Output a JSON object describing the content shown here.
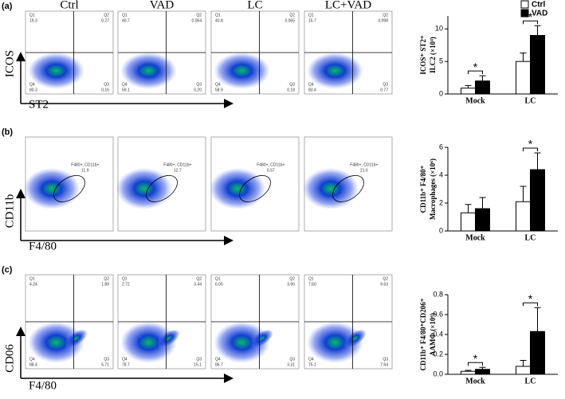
{
  "panels": [
    {
      "label": "(a)",
      "headers": [
        "Ctrl",
        "VAD",
        "LC",
        "LC+VAD"
      ],
      "y_axis": "ICOS",
      "x_axis": "ST2",
      "plots": [
        {
          "quadrants": [
            [
              "Q1",
              "19.3"
            ],
            [
              "Q2",
              "0.27"
            ],
            [
              "Q4",
              "80.3"
            ],
            [
              "Q3",
              "0.16"
            ]
          ]
        },
        {
          "quadrants": [
            [
              "Q1",
              "40.7"
            ],
            [
              "Q2",
              "0.064"
            ],
            [
              "Q4",
              "59.1"
            ],
            [
              "Q3",
              "0.20"
            ]
          ]
        },
        {
          "quadrants": [
            [
              "Q1",
              "40.8"
            ],
            [
              "Q2",
              "0.065"
            ],
            [
              "Q4",
              "58.9"
            ],
            [
              "Q3",
              "0.18"
            ]
          ]
        },
        {
          "quadrants": [
            [
              "Q1",
              "15.7"
            ],
            [
              "Q2",
              "0.098"
            ],
            [
              "Q4",
              "83.4"
            ],
            [
              "Q3",
              "0.77"
            ]
          ]
        }
      ],
      "chart_data": {
        "type": "bar",
        "categories": [
          "Mock",
          "LC"
        ],
        "series": [
          {
            "name": "Ctrl",
            "color": "#ffffff",
            "values": [
              0.9,
              5
            ],
            "errors": [
              0.4,
              1.3
            ]
          },
          {
            "name": "VAD",
            "color": "#000000",
            "values": [
              2,
              9
            ],
            "errors": [
              0.8,
              1.5
            ]
          }
        ],
        "ylim": [
          0,
          12
        ],
        "yticks": [
          0,
          5,
          10
        ],
        "ylabel": [
          "ICOS⁺ ST2⁺",
          "ILC2 (×10⁴)"
        ],
        "significance": [
          "*",
          "*"
        ],
        "legend": true
      }
    },
    {
      "label": "(b)",
      "y_axis": "CD11b",
      "x_axis": "F4/80",
      "plots": [
        {
          "gate": [
            "F480+, CD11b+",
            "11.9"
          ]
        },
        {
          "gate": [
            "F480+, CD11b+",
            "12.7"
          ]
        },
        {
          "gate": [
            "F480+, CD11b+",
            "6.57"
          ]
        },
        {
          "gate": [
            "F480+, CD11b+",
            "21.6"
          ]
        }
      ],
      "chart_data": {
        "type": "bar",
        "categories": [
          "Mock",
          "LC"
        ],
        "series": [
          {
            "name": "Ctrl",
            "color": "#ffffff",
            "values": [
              1.3,
              2.1
            ],
            "errors": [
              0.6,
              1.1
            ]
          },
          {
            "name": "VAD",
            "color": "#000000",
            "values": [
              1.6,
              4.4
            ],
            "errors": [
              0.8,
              1.2
            ]
          }
        ],
        "ylim": [
          0,
          6
        ],
        "yticks": [
          0,
          2,
          4,
          6
        ],
        "ylabel": [
          "CD11b⁺ F4/80⁺",
          "Macrophages (×10⁶)"
        ],
        "significance": [
          null,
          "*"
        ],
        "legend": false
      }
    },
    {
      "label": "(c)",
      "y_axis": "CD06",
      "x_axis": "F4/80",
      "plots": [
        {
          "quadrants": [
            [
              "Q1",
              "4.24"
            ],
            [
              "Q2",
              "1.89"
            ],
            [
              "Q4",
              "88.4"
            ],
            [
              "Q3",
              "5.71"
            ]
          ]
        },
        {
          "quadrants": [
            [
              "Q1",
              "2.72"
            ],
            [
              "Q2",
              "3.44"
            ],
            [
              "Q4",
              "78.7"
            ],
            [
              "Q3",
              "15.1"
            ]
          ]
        },
        {
          "quadrants": [
            [
              "Q1",
              "6.05"
            ],
            [
              "Q2",
              "3.95"
            ],
            [
              "Q4",
              "86.7"
            ],
            [
              "Q3",
              "3.31"
            ]
          ]
        },
        {
          "quadrants": [
            [
              "Q1",
              "7.60"
            ],
            [
              "Q2",
              "9.63"
            ],
            [
              "Q4",
              "75.1"
            ],
            [
              "Q3",
              "7.64"
            ]
          ]
        }
      ],
      "chart_data": {
        "type": "bar",
        "categories": [
          "Mock",
          "LC"
        ],
        "series": [
          {
            "name": "Ctrl",
            "color": "#ffffff",
            "values": [
              0.03,
              0.08
            ],
            "errors": [
              0.01,
              0.06
            ]
          },
          {
            "name": "VAD",
            "color": "#000000",
            "values": [
              0.05,
              0.43
            ],
            "errors": [
              0.02,
              0.24
            ]
          }
        ],
        "ylim": [
          0,
          0.8
        ],
        "yticks": [
          {
            "value": 0,
            "label": "0.0"
          },
          0.2,
          0.4,
          0.6,
          0.8
        ],
        "ylabel": [
          "CD11b⁺ F4/80⁺CD206⁺",
          "AAMΦ (×10⁶)"
        ],
        "significance": [
          "*",
          "*"
        ],
        "legend": false
      }
    }
  ]
}
